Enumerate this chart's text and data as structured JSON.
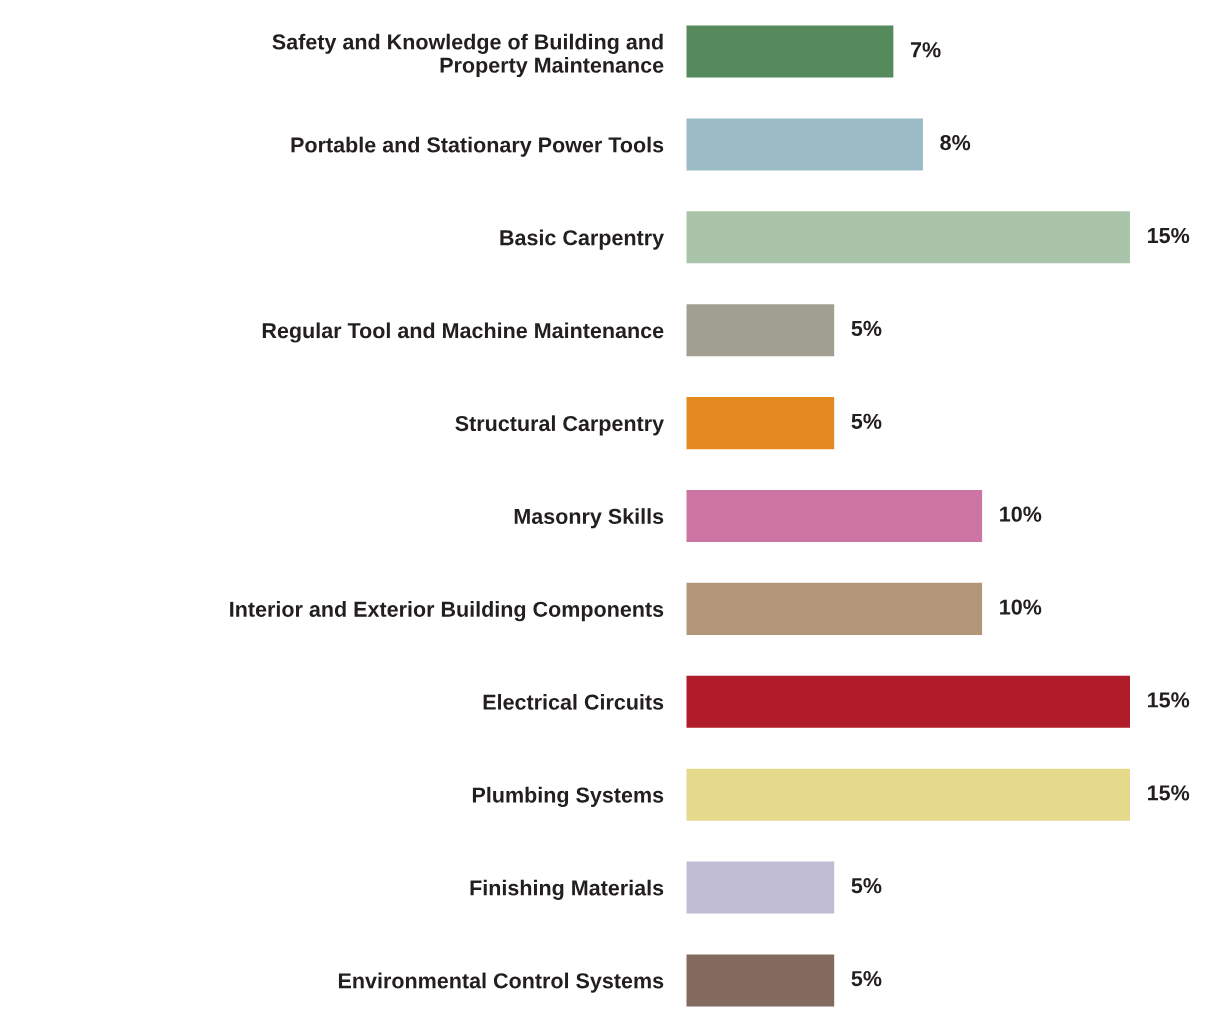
{
  "chart_data": {
    "type": "bar",
    "orientation": "horizontal",
    "categories": [
      "Safety and Knowledge of Building and\nProperty Maintenance",
      "Portable and Stationary Power Tools",
      "Basic Carpentry",
      "Regular Tool and Machine Maintenance",
      "Structural Carpentry",
      "Masonry Skills",
      "Interior and Exterior Building Components",
      "Electrical Circuits",
      "Plumbing Systems",
      "Finishing Materials",
      "Environmental Control Systems"
    ],
    "values": [
      7,
      8,
      15,
      5,
      5,
      10,
      10,
      15,
      15,
      5,
      5
    ],
    "value_labels": [
      "7%",
      "8%",
      "15%",
      "5%",
      "5%",
      "10%",
      "10%",
      "15%",
      "15%",
      "5%",
      "5%"
    ],
    "colors": [
      "#548a5c",
      "#9bbcc6",
      "#a9c4a8",
      "#a19f92",
      "#e58a20",
      "#cc74a2",
      "#b2967a",
      "#b01c2a",
      "#e5d98c",
      "#c0bcd4",
      "#826a5e"
    ],
    "grid": false,
    "legend": false
  }
}
